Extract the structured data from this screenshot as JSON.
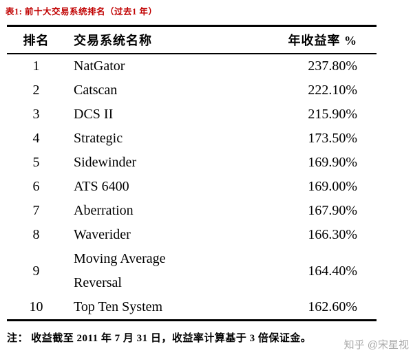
{
  "caption": "表1: 前十大交易系统排名（过去1 年）",
  "table": {
    "headers": [
      "排名",
      "交易系统名称",
      "年收益率 %"
    ],
    "rows": [
      {
        "rank": "1",
        "name": "NatGator",
        "return": "237.80%"
      },
      {
        "rank": "2",
        "name": "Catscan",
        "return": "222.10%"
      },
      {
        "rank": "3",
        "name": "DCS II",
        "return": "215.90%"
      },
      {
        "rank": "4",
        "name": "Strategic",
        "return": "173.50%"
      },
      {
        "rank": "5",
        "name": "Sidewinder",
        "return": "169.90%"
      },
      {
        "rank": "6",
        "name": "ATS 6400",
        "return": "169.00%"
      },
      {
        "rank": "7",
        "name": "Aberration",
        "return": "167.90%"
      },
      {
        "rank": "8",
        "name": "Waverider",
        "return": "166.30%"
      },
      {
        "rank": "9",
        "name": "Moving Average Reversal",
        "return": "164.40%"
      },
      {
        "rank": "10",
        "name": "Top Ten System",
        "return": "162.60%"
      }
    ]
  },
  "note": "注： 收益截至 2011 年 7 月 31 日，收益率计算基于 3 倍保证金。",
  "watermark": "知乎 @宋星视",
  "colors": {
    "caption_red": "#c00000",
    "border_black": "#000000",
    "watermark_gray": "#8c8c8c"
  }
}
